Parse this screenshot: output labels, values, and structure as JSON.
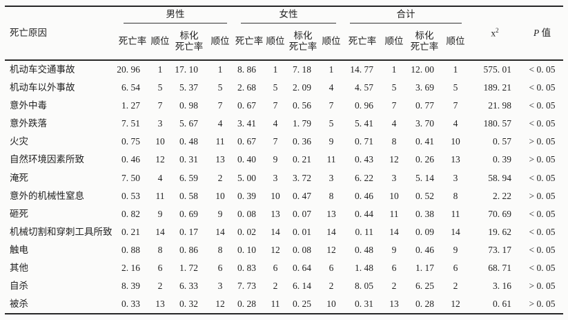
{
  "table": {
    "row_header_label": "死亡原因",
    "groups": [
      {
        "label": "男性"
      },
      {
        "label": "女性"
      },
      {
        "label": "合计"
      }
    ],
    "sub_headers": {
      "rate": "死亡率",
      "rank": "顺位",
      "std_rate": "标化\n死亡率"
    },
    "chi_label_base": "x",
    "chi_label_sup": "2",
    "p_label_prefix": "P",
    "p_label_suffix": " 值",
    "rows": [
      {
        "cause": "机动车交通事故",
        "male": [
          "20. 96",
          "1",
          "17. 10",
          "1"
        ],
        "female": [
          "8. 86",
          "1",
          "7. 18",
          "1"
        ],
        "total": [
          "14. 77",
          "1",
          "12. 00",
          "1"
        ],
        "chi": "575. 01",
        "p": "< 0. 05"
      },
      {
        "cause": "机动车以外事故",
        "male": [
          "6. 54",
          "5",
          "5. 37",
          "5"
        ],
        "female": [
          "2. 68",
          "5",
          "2. 09",
          "4"
        ],
        "total": [
          "4. 57",
          "5",
          "3. 69",
          "5"
        ],
        "chi": "189. 21",
        "p": "< 0. 05"
      },
      {
        "cause": "意外中毒",
        "male": [
          "1. 27",
          "7",
          "0. 98",
          "7"
        ],
        "female": [
          "0. 67",
          "7",
          "0. 56",
          "7"
        ],
        "total": [
          "0. 96",
          "7",
          "0. 77",
          "7"
        ],
        "chi": "21. 98",
        "p": "< 0. 05"
      },
      {
        "cause": "意外跌落",
        "male": [
          "7. 51",
          "3",
          "5. 67",
          "4"
        ],
        "female": [
          "3. 41",
          "4",
          "1. 79",
          "5"
        ],
        "total": [
          "5. 41",
          "4",
          "3. 70",
          "4"
        ],
        "chi": "180. 57",
        "p": "< 0. 05"
      },
      {
        "cause": "火灾",
        "male": [
          "0. 75",
          "10",
          "0. 48",
          "11"
        ],
        "female": [
          "0. 67",
          "7",
          "0. 36",
          "9"
        ],
        "total": [
          "0. 71",
          "8",
          "0. 41",
          "10"
        ],
        "chi": "0. 57",
        "p": "> 0. 05"
      },
      {
        "cause": "自然环境因素所致",
        "male": [
          "0. 46",
          "12",
          "0. 31",
          "13"
        ],
        "female": [
          "0. 40",
          "9",
          "0. 21",
          "11"
        ],
        "total": [
          "0. 43",
          "12",
          "0. 26",
          "13"
        ],
        "chi": "0. 39",
        "p": "> 0. 05"
      },
      {
        "cause": "淹死",
        "male": [
          "7. 50",
          "4",
          "6. 59",
          "2"
        ],
        "female": [
          "5. 00",
          "3",
          "3. 72",
          "3"
        ],
        "total": [
          "6. 22",
          "3",
          "5. 14",
          "3"
        ],
        "chi": "58. 94",
        "p": "< 0. 05"
      },
      {
        "cause": "意外的机械性窒息",
        "male": [
          "0. 53",
          "11",
          "0. 58",
          "10"
        ],
        "female": [
          "0. 39",
          "10",
          "0. 47",
          "8"
        ],
        "total": [
          "0. 46",
          "10",
          "0. 52",
          "8"
        ],
        "chi": "2. 22",
        "p": "> 0. 05"
      },
      {
        "cause": "砸死",
        "male": [
          "0. 82",
          "9",
          "0. 69",
          "9"
        ],
        "female": [
          "0. 08",
          "13",
          "0. 07",
          "13"
        ],
        "total": [
          "0. 44",
          "11",
          "0. 38",
          "11"
        ],
        "chi": "70. 69",
        "p": "< 0. 05"
      },
      {
        "cause": "机械切割和穿刺工具所致",
        "male": [
          "0. 21",
          "14",
          "0. 17",
          "14"
        ],
        "female": [
          "0. 02",
          "14",
          "0. 01",
          "14"
        ],
        "total": [
          "0. 11",
          "14",
          "0. 09",
          "14"
        ],
        "chi": "19. 62",
        "p": "< 0. 05"
      },
      {
        "cause": "触电",
        "male": [
          "0. 88",
          "8",
          "0. 86",
          "8"
        ],
        "female": [
          "0. 10",
          "12",
          "0. 08",
          "12"
        ],
        "total": [
          "0. 48",
          "9",
          "0. 46",
          "9"
        ],
        "chi": "73. 17",
        "p": "< 0. 05"
      },
      {
        "cause": "其他",
        "male": [
          "2. 16",
          "6",
          "1. 72",
          "6"
        ],
        "female": [
          "0. 83",
          "6",
          "0. 64",
          "6"
        ],
        "total": [
          "1. 48",
          "6",
          "1. 17",
          "6"
        ],
        "chi": "68. 71",
        "p": "< 0. 05"
      },
      {
        "cause": "自杀",
        "male": [
          "8. 39",
          "2",
          "6. 33",
          "3"
        ],
        "female": [
          "7. 73",
          "2",
          "6. 14",
          "2"
        ],
        "total": [
          "8. 05",
          "2",
          "6. 25",
          "2"
        ],
        "chi": "3. 16",
        "p": "> 0. 05"
      },
      {
        "cause": "被杀",
        "male": [
          "0. 33",
          "13",
          "0. 32",
          "12"
        ],
        "female": [
          "0. 28",
          "11",
          "0. 25",
          "10"
        ],
        "total": [
          "0. 31",
          "13",
          "0. 28",
          "12"
        ],
        "chi": "0. 61",
        "p": "> 0. 05"
      }
    ]
  }
}
